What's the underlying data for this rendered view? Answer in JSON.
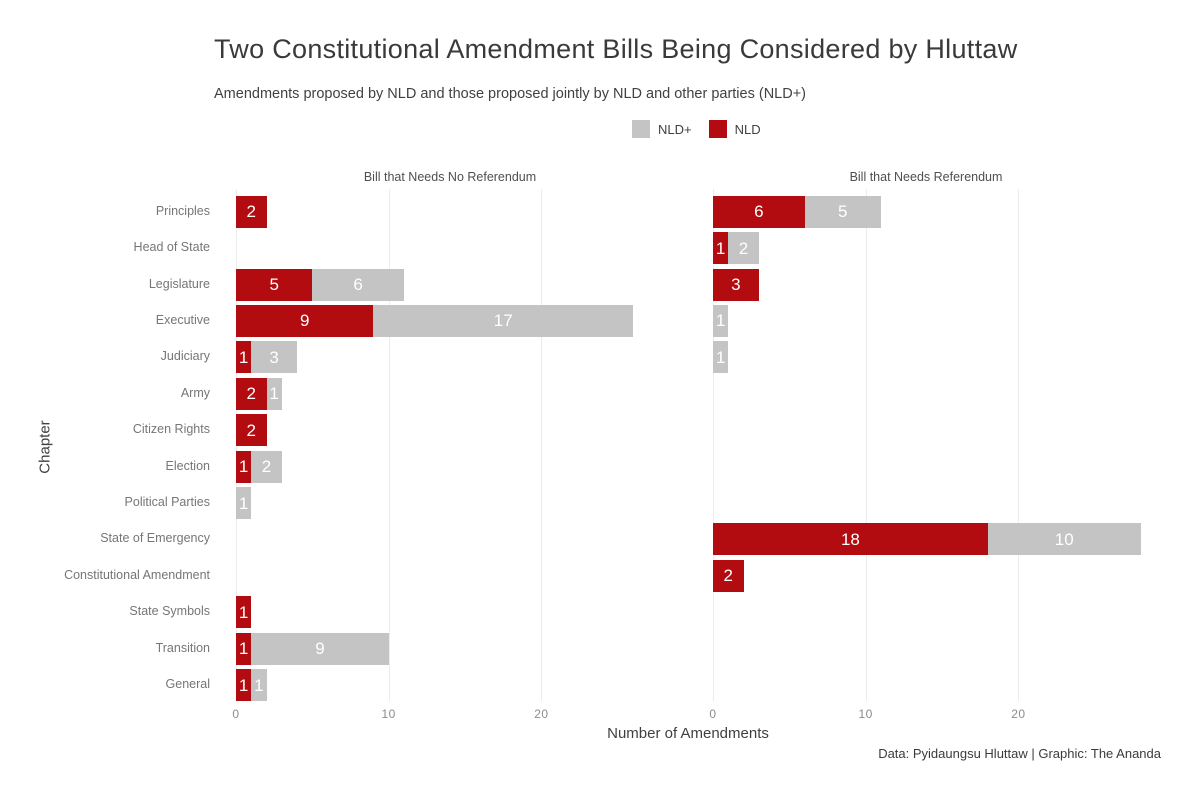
{
  "chart_data": {
    "type": "bar",
    "orientation": "horizontal",
    "stacked": true,
    "faceted": true,
    "grid": true,
    "legend_position": "top-center",
    "title": "Two Constitutional Amendment Bills Being Considered by Hluttaw",
    "subtitle": "Amendments proposed by NLD and those proposed jointly by NLD and other parties (NLD+)",
    "xlabel": "Number of Amendments",
    "ylabel": "Chapter",
    "footer": "Data: Pyidaungsu Hluttaw | Graphic: The Ananda",
    "x_ticks": [
      0,
      10,
      20
    ],
    "xlim": [
      0,
      28
    ],
    "colors": {
      "nld": "#b20c10",
      "nld_plus": "#c4c4c4"
    },
    "legend": [
      {
        "name": "NLD+",
        "color_key": "nld_plus"
      },
      {
        "name": "NLD",
        "color_key": "nld"
      }
    ],
    "categories": [
      "Principles",
      "Head of State",
      "Legislature",
      "Executive",
      "Judiciary",
      "Army",
      "Citizen Rights",
      "Election",
      "Political Parties",
      "State of Emergency",
      "Constitutional Amendment",
      "State Symbols",
      "Transition",
      "General"
    ],
    "panels": [
      {
        "title": "Bill that Needs No Referendum",
        "series": [
          {
            "name": "NLD",
            "color_key": "nld",
            "values": [
              2,
              0,
              5,
              9,
              1,
              2,
              2,
              1,
              0,
              0,
              0,
              1,
              1,
              1
            ]
          },
          {
            "name": "NLD+",
            "color_key": "nld_plus",
            "values": [
              0,
              0,
              6,
              17,
              3,
              1,
              0,
              2,
              1,
              0,
              0,
              0,
              9,
              1
            ]
          }
        ]
      },
      {
        "title": "Bill that Needs Referendum",
        "series": [
          {
            "name": "NLD",
            "color_key": "nld",
            "values": [
              6,
              1,
              3,
              0,
              0,
              0,
              0,
              0,
              0,
              18,
              2,
              0,
              0,
              0
            ]
          },
          {
            "name": "NLD+",
            "color_key": "nld_plus",
            "values": [
              5,
              2,
              0,
              1,
              1,
              0,
              0,
              0,
              0,
              10,
              0,
              0,
              0,
              0
            ]
          }
        ]
      }
    ]
  }
}
